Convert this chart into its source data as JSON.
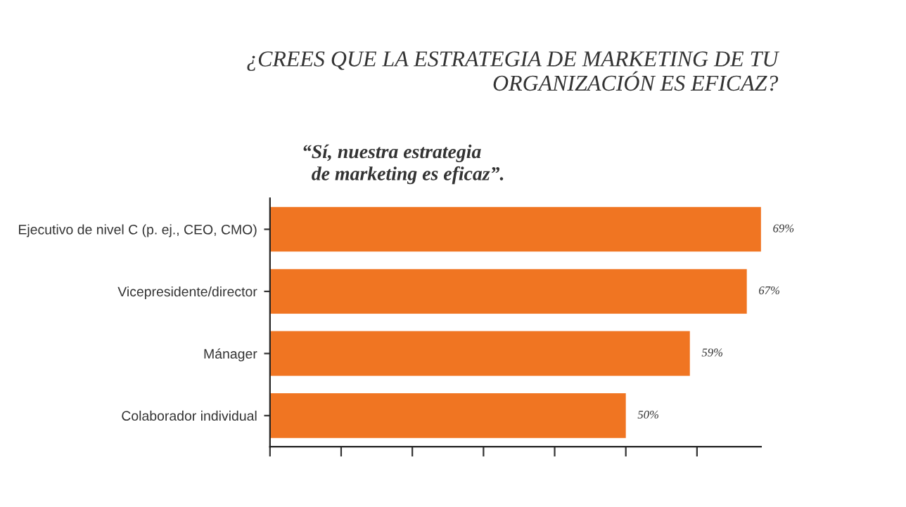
{
  "chart_data": {
    "type": "bar",
    "orientation": "horizontal",
    "title": "¿CREES QUE LA ESTRATEGIA DE MARKETING DE TU\nORGANIZACIÓN ES EFICAZ?",
    "subtitle": "“Sí, nuestra estrategia\n  de marketing es eficaz”.",
    "categories": [
      "Ejecutivo de nivel C (p. ej., CEO, CMO)",
      "Vicepresidente/director",
      "Mánager",
      "Colaborador individual"
    ],
    "values": [
      69,
      67,
      59,
      50
    ],
    "value_labels": [
      "69%",
      "67%",
      "59%",
      "50%"
    ],
    "color": "#f07522",
    "xlim": [
      0,
      69
    ],
    "xticks": [
      {
        "value": 0,
        "label": null
      },
      {
        "value": 10,
        "label": null
      },
      {
        "value": 20,
        "label": null
      },
      {
        "value": 30,
        "label": null
      },
      {
        "value": 40,
        "label": null
      },
      {
        "value": 50,
        "label": null
      },
      {
        "value": 60,
        "label": null
      }
    ],
    "tick_labels": "y",
    "grid": false,
    "legend": false
  }
}
